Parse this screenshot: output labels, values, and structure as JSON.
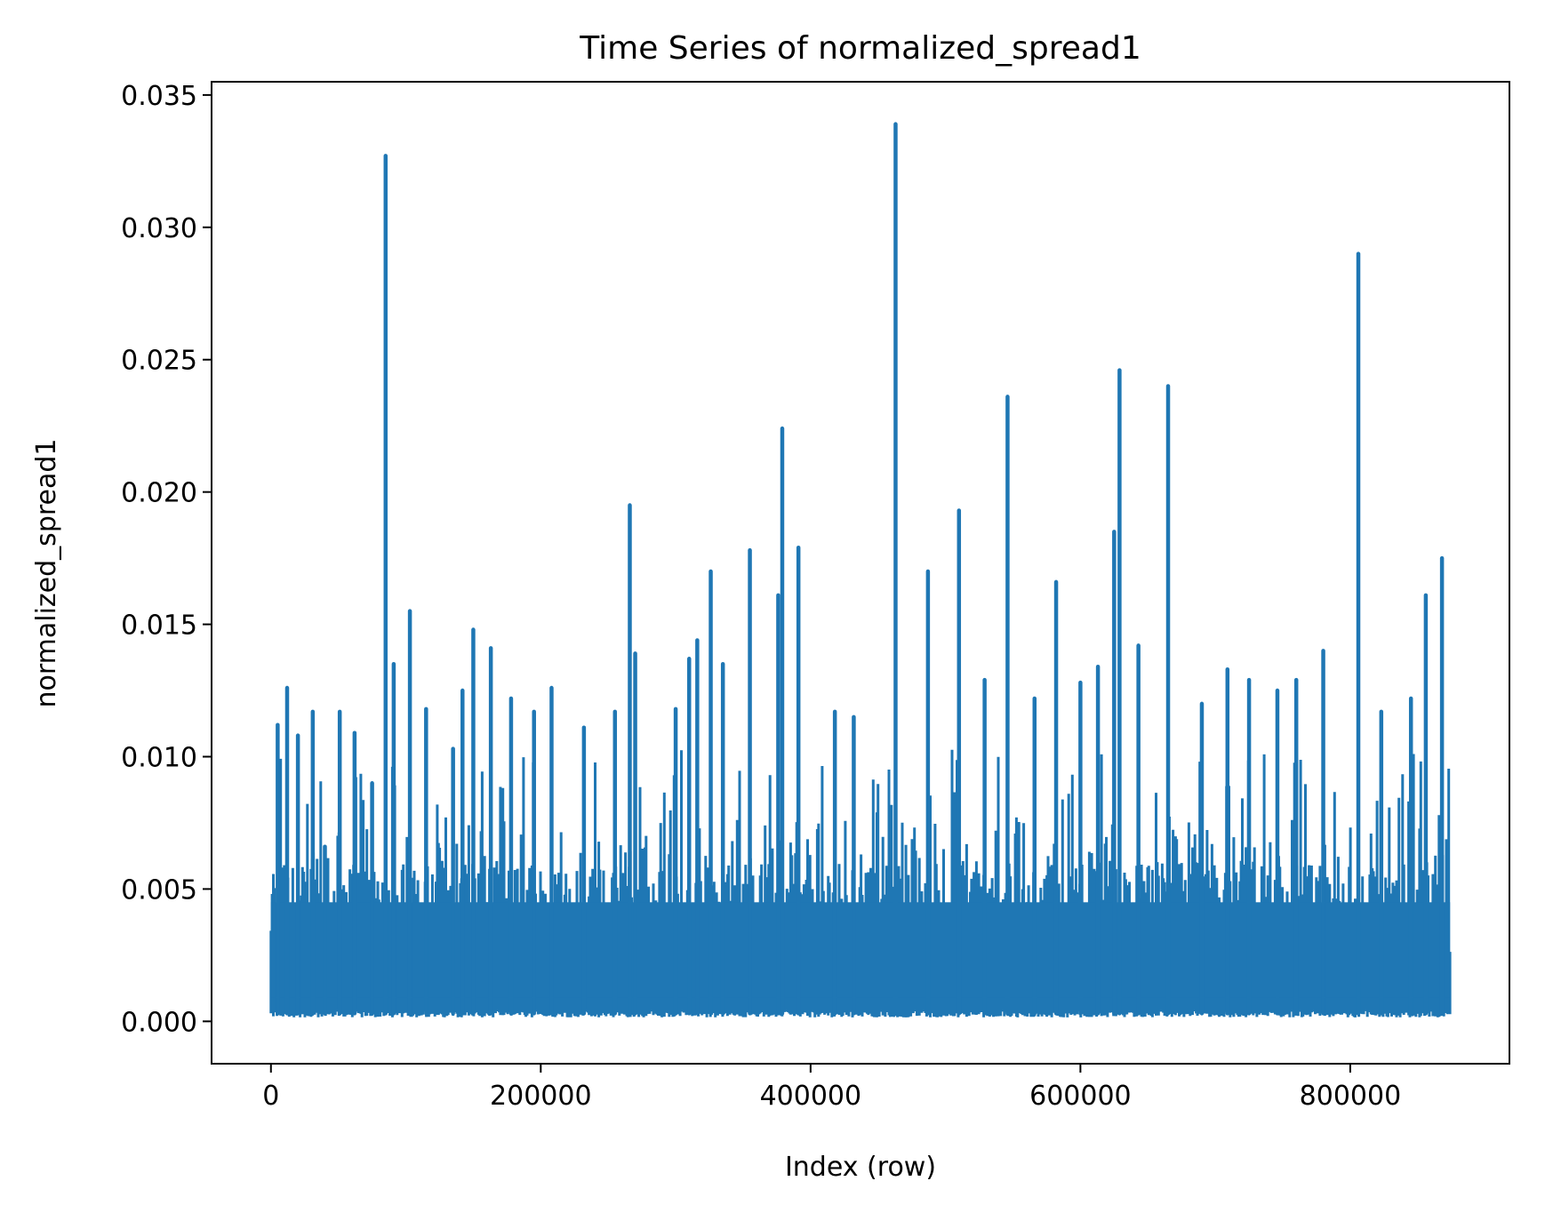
{
  "chart_data": {
    "type": "line",
    "title": "Time Series of normalized_spread1",
    "xlabel": "Index (row)",
    "ylabel": "normalized_spread1",
    "xlim": [
      -44000,
      918000
    ],
    "ylim": [
      -0.0016,
      0.0355
    ],
    "x_ticks": [
      0,
      200000,
      400000,
      600000,
      800000
    ],
    "x_tick_labels": [
      "0",
      "200000",
      "400000",
      "600000",
      "800000"
    ],
    "y_ticks": [
      0.0,
      0.005,
      0.01,
      0.015,
      0.02,
      0.025,
      0.03,
      0.035
    ],
    "y_tick_labels": [
      "0.000",
      "0.005",
      "0.010",
      "0.015",
      "0.020",
      "0.025",
      "0.030",
      "0.035"
    ],
    "grid": false,
    "legend": "none",
    "series": [
      {
        "color": "#1f77b4",
        "x_start": 0,
        "x_end": 874000,
        "baseline_band": [
          0.0003,
          0.006
        ],
        "spikes": [
          {
            "x": 5000,
            "y": 0.0112
          },
          {
            "x": 12000,
            "y": 0.0126
          },
          {
            "x": 20000,
            "y": 0.0108
          },
          {
            "x": 31000,
            "y": 0.0117
          },
          {
            "x": 40000,
            "y": 0.0066
          },
          {
            "x": 51000,
            "y": 0.0117
          },
          {
            "x": 62000,
            "y": 0.0109
          },
          {
            "x": 75000,
            "y": 0.009
          },
          {
            "x": 85000,
            "y": 0.0327
          },
          {
            "x": 91000,
            "y": 0.0135
          },
          {
            "x": 103000,
            "y": 0.0155
          },
          {
            "x": 115000,
            "y": 0.0118
          },
          {
            "x": 135000,
            "y": 0.0103
          },
          {
            "x": 142000,
            "y": 0.0125
          },
          {
            "x": 150000,
            "y": 0.0148
          },
          {
            "x": 163000,
            "y": 0.0141
          },
          {
            "x": 178000,
            "y": 0.0122
          },
          {
            "x": 195000,
            "y": 0.0117
          },
          {
            "x": 208000,
            "y": 0.0126
          },
          {
            "x": 232000,
            "y": 0.0111
          },
          {
            "x": 255000,
            "y": 0.0117
          },
          {
            "x": 266000,
            "y": 0.0195
          },
          {
            "x": 270000,
            "y": 0.0139
          },
          {
            "x": 300000,
            "y": 0.0118
          },
          {
            "x": 310000,
            "y": 0.0137
          },
          {
            "x": 316000,
            "y": 0.0144
          },
          {
            "x": 326000,
            "y": 0.017
          },
          {
            "x": 335000,
            "y": 0.0135
          },
          {
            "x": 355000,
            "y": 0.0178
          },
          {
            "x": 376000,
            "y": 0.0161
          },
          {
            "x": 379000,
            "y": 0.0224
          },
          {
            "x": 391000,
            "y": 0.0179
          },
          {
            "x": 418000,
            "y": 0.0117
          },
          {
            "x": 432000,
            "y": 0.0115
          },
          {
            "x": 463000,
            "y": 0.0339
          },
          {
            "x": 487000,
            "y": 0.017
          },
          {
            "x": 510000,
            "y": 0.0193
          },
          {
            "x": 529000,
            "y": 0.0129
          },
          {
            "x": 546000,
            "y": 0.0236
          },
          {
            "x": 566000,
            "y": 0.0122
          },
          {
            "x": 582000,
            "y": 0.0166
          },
          {
            "x": 600000,
            "y": 0.0128
          },
          {
            "x": 613000,
            "y": 0.0134
          },
          {
            "x": 625000,
            "y": 0.0185
          },
          {
            "x": 629000,
            "y": 0.0246
          },
          {
            "x": 643000,
            "y": 0.0142
          },
          {
            "x": 665000,
            "y": 0.024
          },
          {
            "x": 690000,
            "y": 0.012
          },
          {
            "x": 709000,
            "y": 0.0133
          },
          {
            "x": 725000,
            "y": 0.0129
          },
          {
            "x": 746000,
            "y": 0.0125
          },
          {
            "x": 760000,
            "y": 0.0129
          },
          {
            "x": 780000,
            "y": 0.014
          },
          {
            "x": 806000,
            "y": 0.029
          },
          {
            "x": 823000,
            "y": 0.0117
          },
          {
            "x": 845000,
            "y": 0.0122
          },
          {
            "x": 856000,
            "y": 0.0161
          },
          {
            "x": 868000,
            "y": 0.0175
          }
        ]
      }
    ]
  }
}
